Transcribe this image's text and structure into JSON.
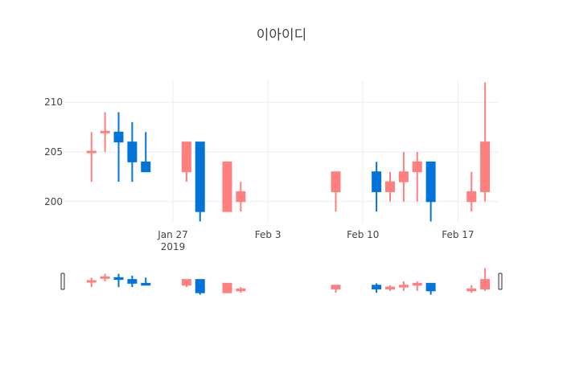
{
  "chart_data": {
    "type": "candlestick",
    "title": "이아이디",
    "xlabel": "",
    "ylabel": "",
    "ylim": [
      197.8,
      212.2
    ],
    "x_range": [
      "2019-01-19",
      "2019-02-20"
    ],
    "y_ticks": [
      200,
      205,
      210
    ],
    "x_ticks": [
      {
        "date": "2019-01-27",
        "label": "Jan 27",
        "sublabel": "2019"
      },
      {
        "date": "2019-02-03",
        "label": "Feb 3",
        "sublabel": ""
      },
      {
        "date": "2019-02-10",
        "label": "Feb 10",
        "sublabel": ""
      },
      {
        "date": "2019-02-17",
        "label": "Feb 17",
        "sublabel": ""
      }
    ],
    "grid": true,
    "legend": "none",
    "rangeslider": true,
    "increasing_color": "#FF851B",
    "increasing_fill": "#FF7F7F",
    "decreasing_color": "#0074D9",
    "candles": [
      {
        "date": "2019-01-21",
        "open": 205,
        "high": 207,
        "low": 202,
        "close": 205
      },
      {
        "date": "2019-01-22",
        "open": 207,
        "high": 209,
        "low": 205,
        "close": 207
      },
      {
        "date": "2019-01-23",
        "open": 207,
        "high": 209,
        "low": 202,
        "close": 206
      },
      {
        "date": "2019-01-24",
        "open": 206,
        "high": 208,
        "low": 202,
        "close": 204
      },
      {
        "date": "2019-01-25",
        "open": 204,
        "high": 207,
        "low": 203,
        "close": 203
      },
      {
        "date": "2019-01-28",
        "open": 203,
        "high": 206,
        "low": 202,
        "close": 206
      },
      {
        "date": "2019-01-29",
        "open": 206,
        "high": 206,
        "low": 198,
        "close": 199
      },
      {
        "date": "2019-01-31",
        "open": 199,
        "high": 204,
        "low": 199,
        "close": 204
      },
      {
        "date": "2019-02-01",
        "open": 200,
        "high": 202,
        "low": 199,
        "close": 201
      },
      {
        "date": "2019-02-08",
        "open": 201,
        "high": 203,
        "low": 199,
        "close": 203
      },
      {
        "date": "2019-02-11",
        "open": 203,
        "high": 204,
        "low": 199,
        "close": 201
      },
      {
        "date": "2019-02-12",
        "open": 201,
        "high": 203,
        "low": 200,
        "close": 202
      },
      {
        "date": "2019-02-13",
        "open": 202,
        "high": 205,
        "low": 200,
        "close": 203
      },
      {
        "date": "2019-02-14",
        "open": 203,
        "high": 205,
        "low": 200,
        "close": 204
      },
      {
        "date": "2019-02-15",
        "open": 204,
        "high": 204,
        "low": 198,
        "close": 200
      },
      {
        "date": "2019-02-18",
        "open": 200,
        "high": 203,
        "low": 199,
        "close": 201
      },
      {
        "date": "2019-02-19",
        "open": 201,
        "high": 212,
        "low": 200,
        "close": 206
      }
    ]
  }
}
